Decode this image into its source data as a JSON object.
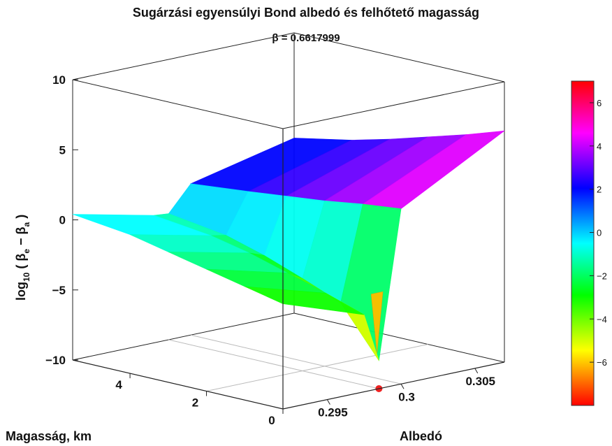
{
  "title": "Sugárzási egyensúlyi Bond albedó és felhőtető magasság",
  "subtitle": "β = 0.6617999",
  "chart_data": {
    "type": "surface3d",
    "title": "Sugárzási egyensúlyi Bond albedó és felhőtető magasság",
    "subtitle": "β = 0.6617999",
    "xlabel": "Magasság, km",
    "ylabel": "Albedó",
    "zlabel": "log10 ( βe − βa )",
    "xlim": [
      0,
      5.5
    ],
    "ylim": [
      0.292,
      0.307
    ],
    "zlim": [
      -10,
      10
    ],
    "xticks": [
      "0",
      "2",
      "4"
    ],
    "yticks": [
      "0.295",
      "0.3",
      "0.305"
    ],
    "zticks": [
      "10",
      "5",
      "0",
      "−5",
      "−10"
    ],
    "surface_rows": [
      {
        "albedo": 0.292,
        "values": [
          -2.5,
          -1.9,
          -1.3,
          -0.7,
          -0.1,
          0.4
        ]
      },
      {
        "albedo": 0.2975,
        "values": [
          -4.5,
          -3.6,
          -2.8,
          -2.0,
          -1.4,
          -0.9
        ]
      },
      {
        "albedo": 0.2985,
        "values": [
          -8.0,
          -4.5,
          -3.4,
          -2.4,
          -1.6,
          -1.0
        ]
      },
      {
        "albedo": 0.3,
        "values": [
          2.5,
          2.2,
          1.8,
          1.5,
          1.2,
          0.8
        ]
      },
      {
        "albedo": 0.307,
        "values": [
          6.5,
          5.6,
          4.8,
          4.0,
          3.3,
          2.5
        ]
      }
    ],
    "surface_x": [
      0,
      1,
      2,
      3,
      4,
      5.5
    ],
    "minimum_marker": {
      "height_km": 0,
      "albedo": 0.2985,
      "label": ""
    },
    "colorbar": {
      "min": -8,
      "max": 7,
      "ticks": [
        "6",
        "4",
        "2",
        "0",
        "−2",
        "−4",
        "−6"
      ],
      "colormap": "hsv"
    },
    "grid": true,
    "legend": "colorbar-right"
  }
}
